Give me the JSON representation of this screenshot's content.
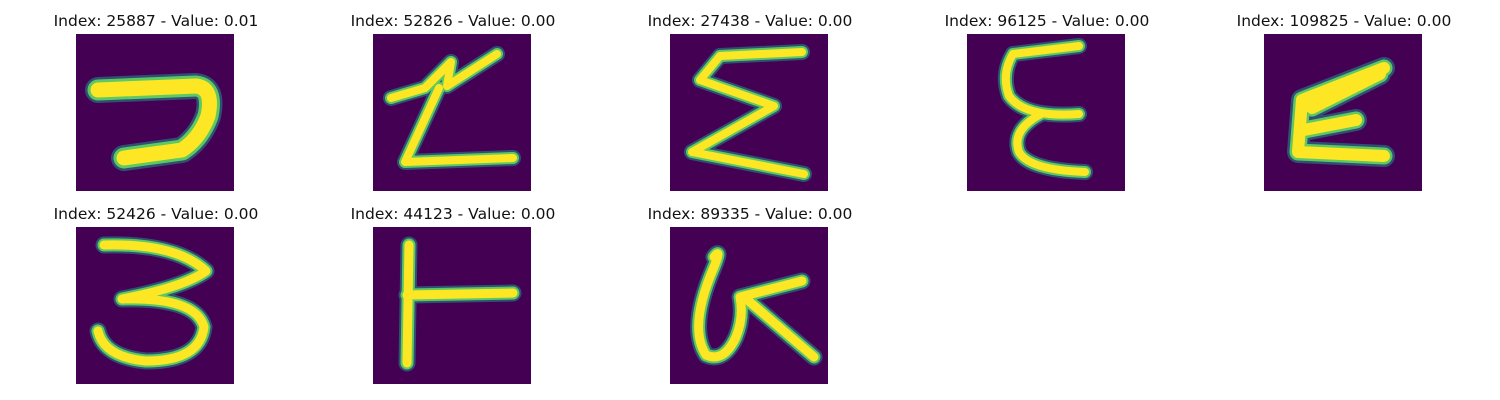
{
  "palette": {
    "background": "#440154",
    "edge": "#21918c",
    "mid": "#5ec962",
    "stroke": "#fde725"
  },
  "grid": {
    "rows": 2,
    "cols": 5
  },
  "samples": [
    {
      "title": "Index: 25887 - Value: 0.01",
      "glyph": "seven-shape"
    },
    {
      "title": "Index: 52826 - Value: 0.00",
      "glyph": "z-shape"
    },
    {
      "title": "Index: 27438 - Value: 0.00",
      "glyph": "sigma-shape"
    },
    {
      "title": "Index: 96125 - Value: 0.00",
      "glyph": "epsilon-shape"
    },
    {
      "title": "Index: 109825 - Value: 0.00",
      "glyph": "slanted-e-shape"
    },
    {
      "title": "Index: 52426 - Value: 0.00",
      "glyph": "three-shape"
    },
    {
      "title": "Index: 44123 - Value: 0.00",
      "glyph": "t-shape"
    },
    {
      "title": "Index: 89335 - Value: 0.00",
      "glyph": "loop-k-shape"
    }
  ]
}
